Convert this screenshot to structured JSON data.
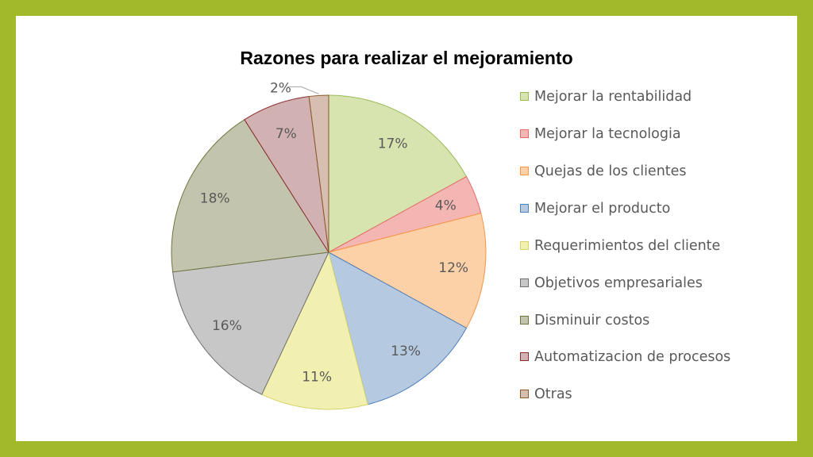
{
  "chart_data": {
    "type": "pie",
    "title": "Razones para realizar el mejoramiento",
    "legend_position": "right",
    "slices": [
      {
        "label": "Mejorar la rentabilidad",
        "value": 17,
        "display": "17%",
        "color": "#d7e4b0",
        "stroke": "#9bbb59"
      },
      {
        "label": "Mejorar la tecnologia",
        "value": 4,
        "display": "4%",
        "color": "#f4b6b3",
        "stroke": "#e46c67"
      },
      {
        "label": "Quejas de los clientes",
        "value": 12,
        "display": "12%",
        "color": "#fdd1a8",
        "stroke": "#f79646"
      },
      {
        "label": "Mejorar el producto",
        "value": 13,
        "display": "13%",
        "color": "#b5cae0",
        "stroke": "#4f81bd"
      },
      {
        "label": "Requerimientos del cliente",
        "value": 11,
        "display": "11%",
        "color": "#f1f0b0",
        "stroke": "#d6d36a"
      },
      {
        "label": "Objetivos empresariales",
        "value": 16,
        "display": "16%",
        "color": "#c7c7c7",
        "stroke": "#6e6e6e"
      },
      {
        "label": "Disminuir costos",
        "value": 18,
        "display": "18%",
        "color": "#c3c4ad",
        "stroke": "#6e7640"
      },
      {
        "label": "Automatizacion de procesos",
        "value": 7,
        "display": "7%",
        "color": "#d1b1b1",
        "stroke": "#8a2c2c"
      },
      {
        "label": "Otras",
        "value": 2,
        "display": "2%",
        "color": "#d6beb0",
        "stroke": "#8a5a2c"
      }
    ]
  }
}
